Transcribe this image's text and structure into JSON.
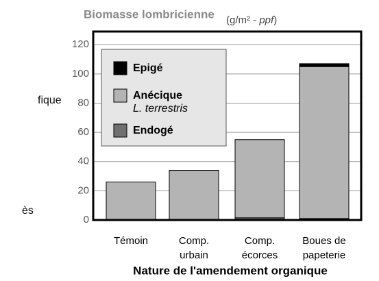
{
  "chart_data": {
    "type": "bar",
    "stacked": true,
    "title": "Biomasse lombricienne",
    "unit": {
      "open": "(g/m² - ",
      "italic": "ppf",
      "close": ")"
    },
    "x_label": "Nature de l'amendement organique",
    "categories": [
      [
        "Témoin"
      ],
      [
        "Comp.",
        "urbain"
      ],
      [
        "Comp.",
        "écorces"
      ],
      [
        "Boues de",
        "papeterie"
      ]
    ],
    "series": [
      {
        "name": "Endogé",
        "color": "#707070",
        "values": [
          0,
          0,
          1.5,
          1
        ]
      },
      {
        "name": "Anécique",
        "subname": "L. terrestris",
        "color": "#b4b4b4",
        "values": [
          26,
          34,
          53.5,
          104
        ]
      },
      {
        "name": "Epigé",
        "color": "#000000",
        "values": [
          0,
          0,
          0,
          2
        ]
      }
    ],
    "ylim": [
      0,
      129
    ],
    "yticks": [
      0,
      20,
      40,
      60,
      80,
      100,
      120
    ],
    "grid": true,
    "fragments": [
      "fique",
      "ès"
    ]
  }
}
